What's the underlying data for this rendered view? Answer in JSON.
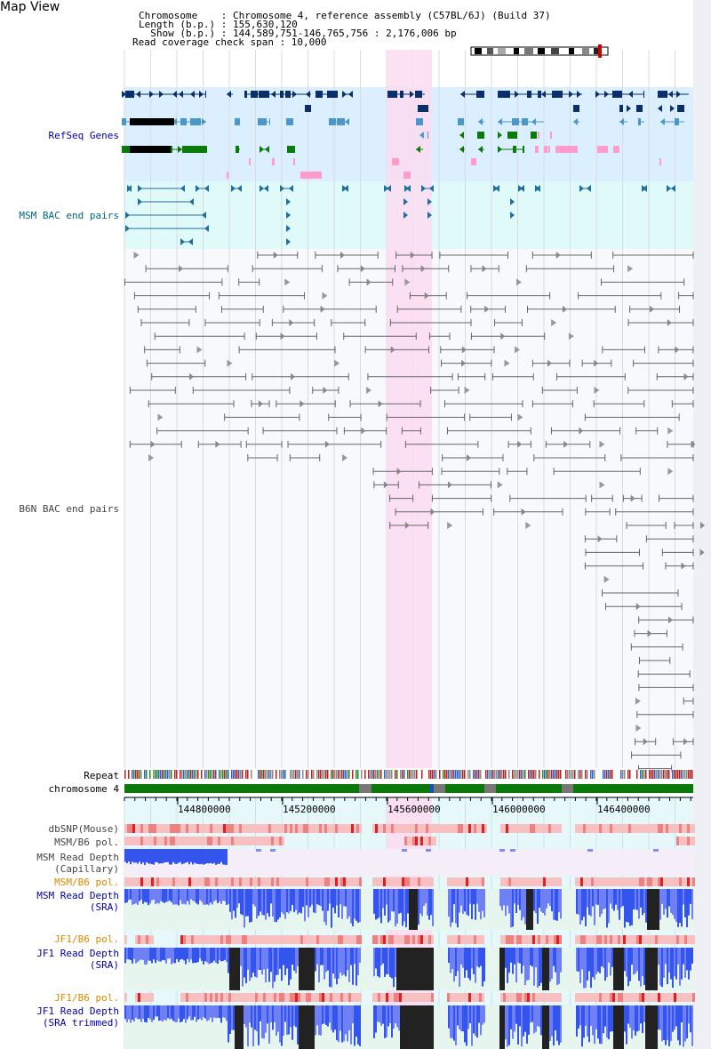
{
  "page_title": "Map View",
  "header": {
    "lines": [
      "Chromosome    : Chromosome 4, reference assembly (C57BL/6J) (Build 37)",
      "Length (b.p.) : 155,630,120",
      "  Show (b.p.) : 144,589,751-146,765,756 : 2,176,006 bp",
      "Read coverage check span : 10,000"
    ]
  },
  "tracks": {
    "refseq": {
      "label": "RefSeq Genes",
      "color": "#0000aa"
    },
    "msm_bac": {
      "label": "MSM BAC end pairs",
      "color": "#006680"
    },
    "b6n_bac": {
      "label": "B6N BAC end pairs",
      "color": "#444444"
    },
    "repeat": {
      "label": "Repeat",
      "color": "#000000"
    },
    "chromosome": {
      "label": "chromosome 4",
      "color": "#000000"
    },
    "dbsnp": {
      "label": "dbSNP(Mouse)",
      "color": "#444444"
    },
    "msm_b6_pol_cap": {
      "label": "MSM/B6 pol.",
      "color": "#444444"
    },
    "msm_depth_cap": {
      "label": "MSM Read Depth\n(Capillary)",
      "color": "#444444"
    },
    "msm_b6_pol": {
      "label": "MSM/B6 pol.",
      "color": "#e08800"
    },
    "msm_depth_sra": {
      "label": "MSM Read Depth\n(SRA)",
      "color": "#0000aa"
    },
    "jf1_b6_pol": {
      "label": "JF1/B6 pol.",
      "color": "#e08800"
    },
    "jf1_depth_sra": {
      "label": "JF1 Read Depth\n(SRA)",
      "color": "#0000aa"
    },
    "jf1_b6_pol_trim": {
      "label": "JF1/B6 pol.",
      "color": "#e08800"
    },
    "jf1_depth_trim": {
      "label": "JF1 Read Depth\n(SRA trimmed)",
      "color": "#0000aa"
    }
  },
  "axis": {
    "ticks": [
      "144800000",
      "145200000",
      "145600000",
      "146000000",
      "146400000"
    ]
  },
  "colors": {
    "highlight": "#fadcf0",
    "refseq_bg": "#dcefff",
    "bac_bg": "#e0fafa",
    "dark_gene": "#0a2f6a",
    "mid_gene": "#4a97c8",
    "green_gene": "#0a7a0a",
    "pink_gene": "#ff9ccc",
    "chromosome_band": "#0a780a",
    "depth_blue": "#3355ee",
    "depth_black": "#222222"
  }
}
